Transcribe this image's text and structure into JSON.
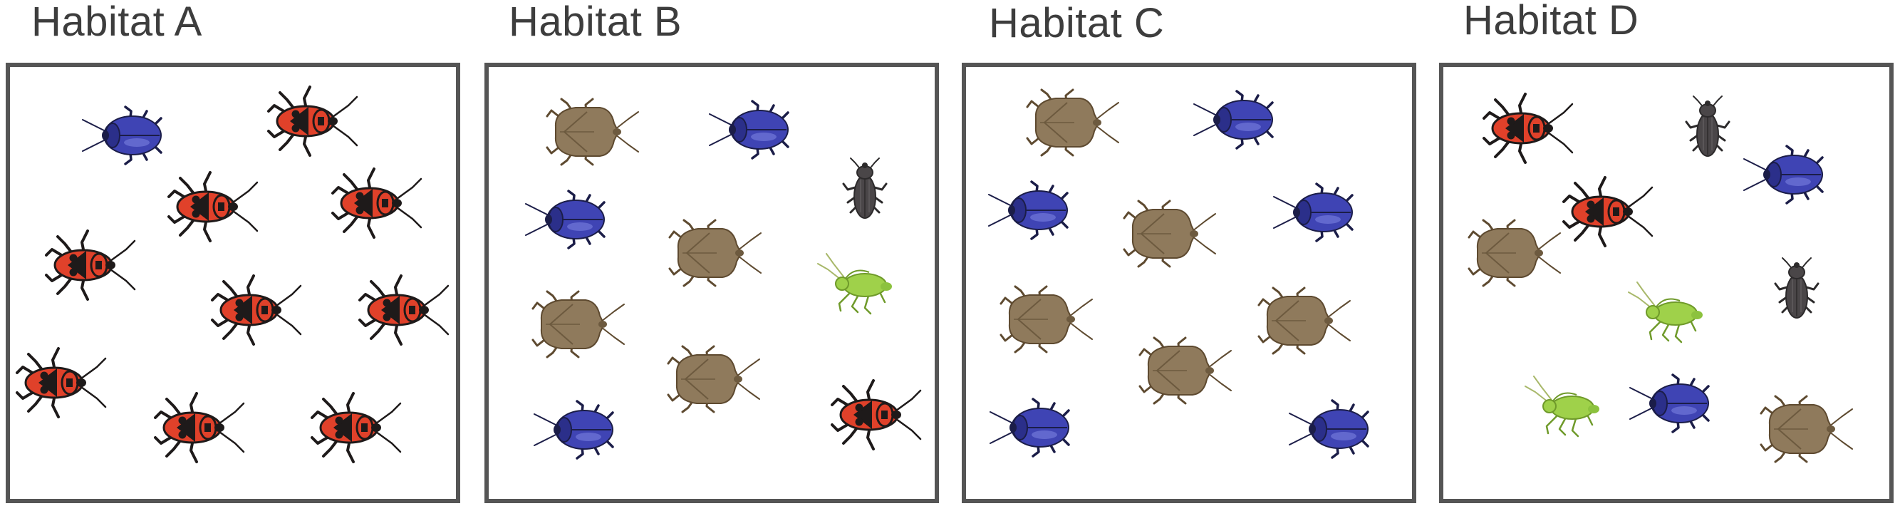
{
  "colors": {
    "frame": "#555555",
    "title": "#3d3d3d",
    "firebug_body": "#e0412a",
    "firebug_dark": "#1e1a1a",
    "beetle_blue": "#3f44b4",
    "stinkbug_brown": "#8f7a5c",
    "weevil_gray": "#4a4648",
    "aphid_green": "#9fd14a"
  },
  "habitats": [
    {
      "title": "Habitat A",
      "insects": [
        {
          "type": "blue-beetle"
        },
        {
          "type": "firebug"
        },
        {
          "type": "firebug"
        },
        {
          "type": "firebug"
        },
        {
          "type": "firebug"
        },
        {
          "type": "firebug"
        },
        {
          "type": "firebug"
        },
        {
          "type": "firebug"
        },
        {
          "type": "firebug"
        },
        {
          "type": "firebug"
        }
      ]
    },
    {
      "title": "Habitat B",
      "insects": [
        {
          "type": "stink-bug"
        },
        {
          "type": "blue-beetle"
        },
        {
          "type": "weevil"
        },
        {
          "type": "blue-beetle"
        },
        {
          "type": "stink-bug"
        },
        {
          "type": "aphid"
        },
        {
          "type": "stink-bug"
        },
        {
          "type": "stink-bug"
        },
        {
          "type": "blue-beetle"
        },
        {
          "type": "firebug"
        }
      ]
    },
    {
      "title": "Habitat C",
      "insects": [
        {
          "type": "stink-bug"
        },
        {
          "type": "blue-beetle"
        },
        {
          "type": "blue-beetle"
        },
        {
          "type": "stink-bug"
        },
        {
          "type": "blue-beetle"
        },
        {
          "type": "stink-bug"
        },
        {
          "type": "stink-bug"
        },
        {
          "type": "stink-bug"
        },
        {
          "type": "blue-beetle"
        },
        {
          "type": "blue-beetle"
        }
      ]
    },
    {
      "title": "Habitat D",
      "insects": [
        {
          "type": "firebug"
        },
        {
          "type": "weevil"
        },
        {
          "type": "blue-beetle"
        },
        {
          "type": "firebug"
        },
        {
          "type": "stink-bug"
        },
        {
          "type": "aphid"
        },
        {
          "type": "weevil"
        },
        {
          "type": "aphid"
        },
        {
          "type": "blue-beetle"
        },
        {
          "type": "stink-bug"
        }
      ]
    }
  ]
}
